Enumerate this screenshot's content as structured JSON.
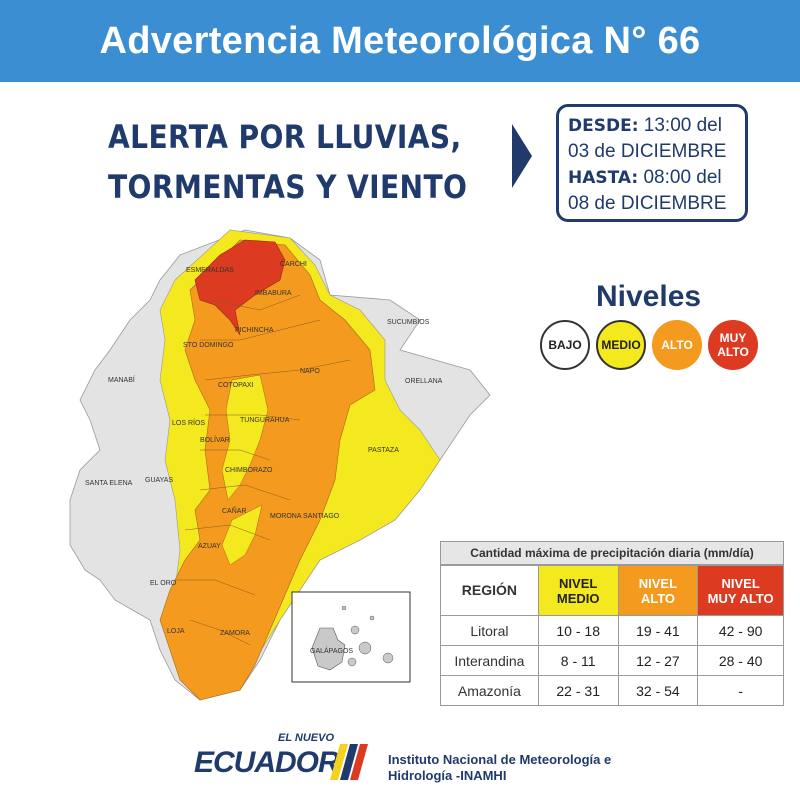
{
  "header": {
    "title": "Advertencia Meteorológica N° 66"
  },
  "headline": {
    "line1_prefix": "ALERTA POR ",
    "line1_emph": "LLUVIAS,",
    "line2": "TORMENTAS Y VIENTO"
  },
  "period": {
    "desde_label": "DESDE:",
    "desde_value": " 13:00 del",
    "desde_date": "03 de DICIEMBRE",
    "hasta_label": "HASTA:",
    "hasta_value": " 08:00 del",
    "hasta_date": "08 de DICIEMBRE"
  },
  "levels": {
    "title": "Niveles",
    "items": [
      {
        "label": "BAJO",
        "color": "#ffffff"
      },
      {
        "label": "MEDIO",
        "color": "#f4e81e"
      },
      {
        "label": "ALTO",
        "color": "#f39a1f"
      },
      {
        "label": "MUY ALTO",
        "color": "#dc3b22"
      }
    ]
  },
  "map": {
    "provinces": [
      "ESMERALDAS",
      "CARCHI",
      "IMBABURA",
      "PICHINCHA",
      "SUCUMBIOS",
      "STO DOMINGO",
      "NAPO",
      "ORELLANA",
      "MANABÍ",
      "COTOPAXI",
      "LOS RÍOS",
      "TUNGURAHUA",
      "BOLÍVAR",
      "PASTAZA",
      "CHIMBORAZO",
      "SANTA ELENA",
      "GUAYAS",
      "CAÑAR",
      "MORONA SANTIAGO",
      "AZUAY",
      "EL ORO",
      "LOJA",
      "ZAMORA",
      "GALÁPAGOS"
    ]
  },
  "precipitation": {
    "caption": "Cantidad máxima de precipitación diaria (mm/día)",
    "headers": [
      "REGIÓN",
      "NIVEL MEDIO",
      "NIVEL ALTO",
      "NIVEL MUY ALTO"
    ],
    "rows": [
      {
        "region": "Litoral",
        "medio": "10 - 18",
        "alto": "19 - 41",
        "muy_alto": "42 - 90"
      },
      {
        "region": "Interandina",
        "medio": "8 - 11",
        "alto": "12 - 27",
        "muy_alto": "28 - 40"
      },
      {
        "region": "Amazonía",
        "medio": "22 - 31",
        "alto": "32 - 54",
        "muy_alto": "-"
      }
    ]
  },
  "footer": {
    "logo_small": "EL NUEVO",
    "logo_big": "ECUADOR",
    "institution_line1": "Instituto Nacional de Meteorología e",
    "institution_line2": "Hidrología -INAMHI"
  }
}
